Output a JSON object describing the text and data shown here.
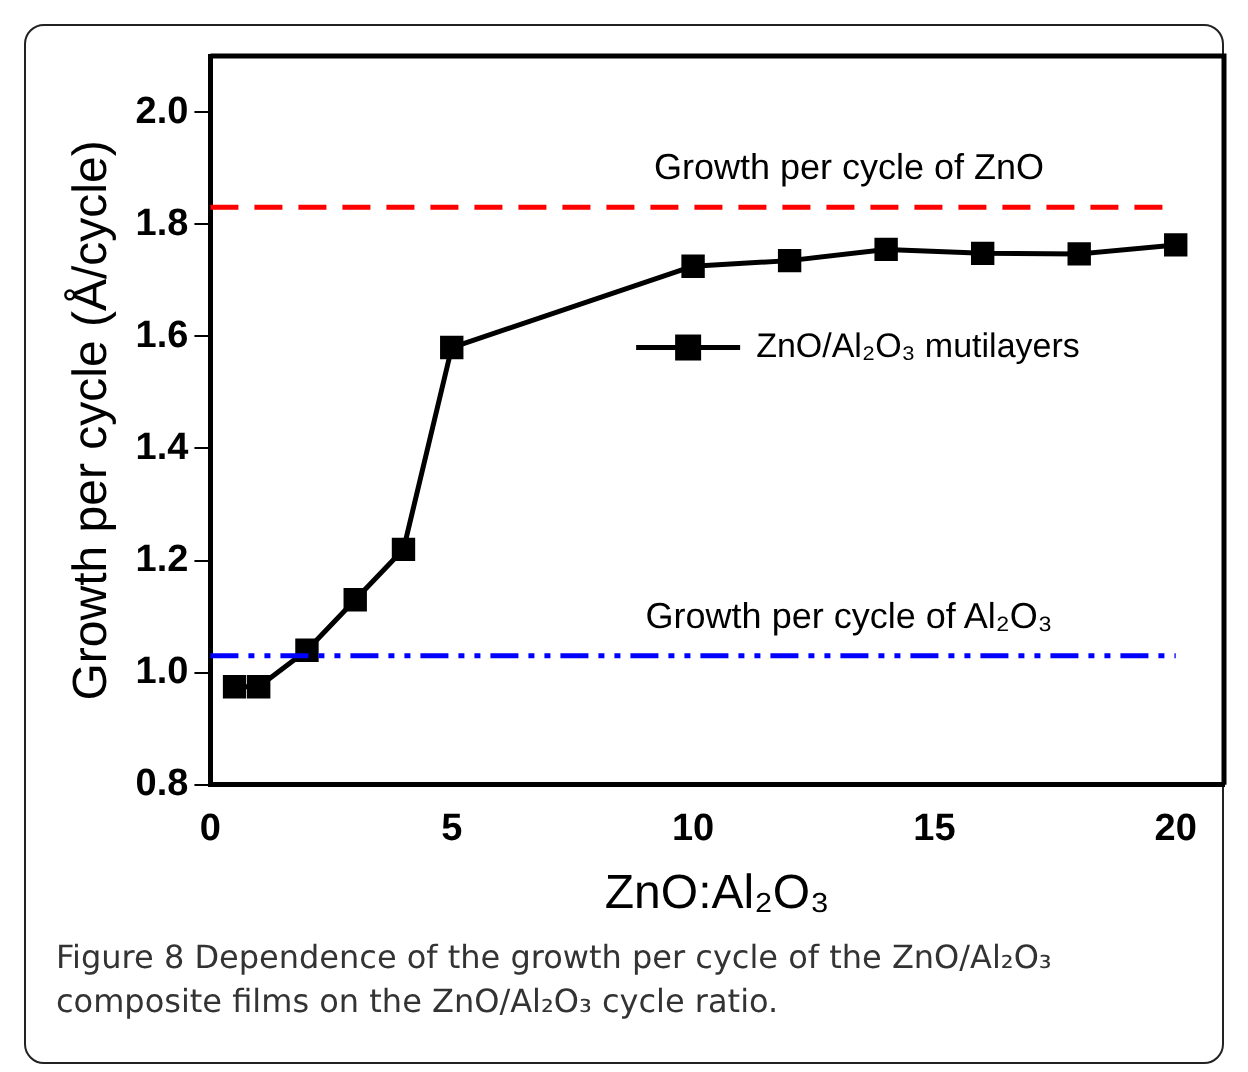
{
  "chart_data": {
    "type": "line",
    "xlabel": "ZnO:Al₂O₃",
    "ylabel": "Growth per cycle (Å/cycle)",
    "x": [
      0.5,
      1,
      2,
      3,
      4,
      5,
      10,
      12,
      14,
      16,
      18,
      20
    ],
    "series": [
      {
        "name": "ZnO/Al₂O₃ mutilayers",
        "color": "#000000",
        "values": [
          0.975,
          0.975,
          1.04,
          1.13,
          1.22,
          1.58,
          1.725,
          1.735,
          1.755,
          1.748,
          1.747,
          1.763
        ]
      }
    ],
    "marker": "square",
    "line_style": "solid",
    "legend": "right",
    "grid": false,
    "xlim": [
      0,
      21
    ],
    "xticks": [
      0,
      5,
      10,
      15,
      20
    ],
    "ylim": [
      0.8,
      2.1
    ],
    "yticks": [
      0.8,
      {
        "value": 1,
        "label": "1.0"
      },
      1.2,
      1.4,
      1.6,
      1.8,
      {
        "value": 2,
        "label": "2.0"
      }
    ],
    "ref_lines": [
      {
        "axis": "y",
        "value": 1.83,
        "label": "Growth per cycle of ZnO",
        "color": "#ff0000",
        "line_style": "dashed"
      },
      {
        "axis": "y",
        "value": 1.03,
        "label": "Growth per cycle of Al₂O₃",
        "color": "#0000ff",
        "line_style": "dashdot"
      }
    ],
    "annotations": [
      "Figure 8 Dependence of the growth per cycle of the ZnO/Al₂O₃ composite films on the ZnO/Al₂O₃ cycle ratio."
    ]
  }
}
